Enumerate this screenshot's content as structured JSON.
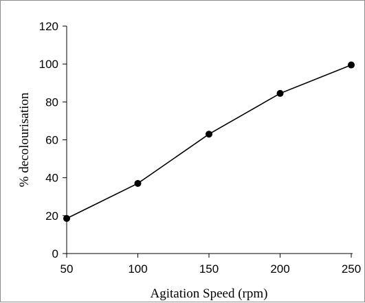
{
  "chart_data": {
    "type": "line",
    "title": "",
    "xlabel": "Agitation Speed (rpm)",
    "ylabel": "% decolourisation",
    "x": [
      50,
      100,
      150,
      200,
      250
    ],
    "series": [
      {
        "values": [
          18.5,
          37,
          63,
          84.5,
          99.5
        ]
      }
    ],
    "xlim": [
      50,
      250
    ],
    "ylim": [
      0,
      120
    ],
    "xticks": [
      "50",
      "100",
      "150",
      "200",
      "250"
    ],
    "yticks": [
      "0",
      "20",
      "40",
      "60",
      "80",
      "100",
      "120"
    ],
    "grid": false,
    "legend": "none",
    "colors": {
      "line": "#000000",
      "marker": "#000000",
      "axis": "#000000"
    }
  }
}
